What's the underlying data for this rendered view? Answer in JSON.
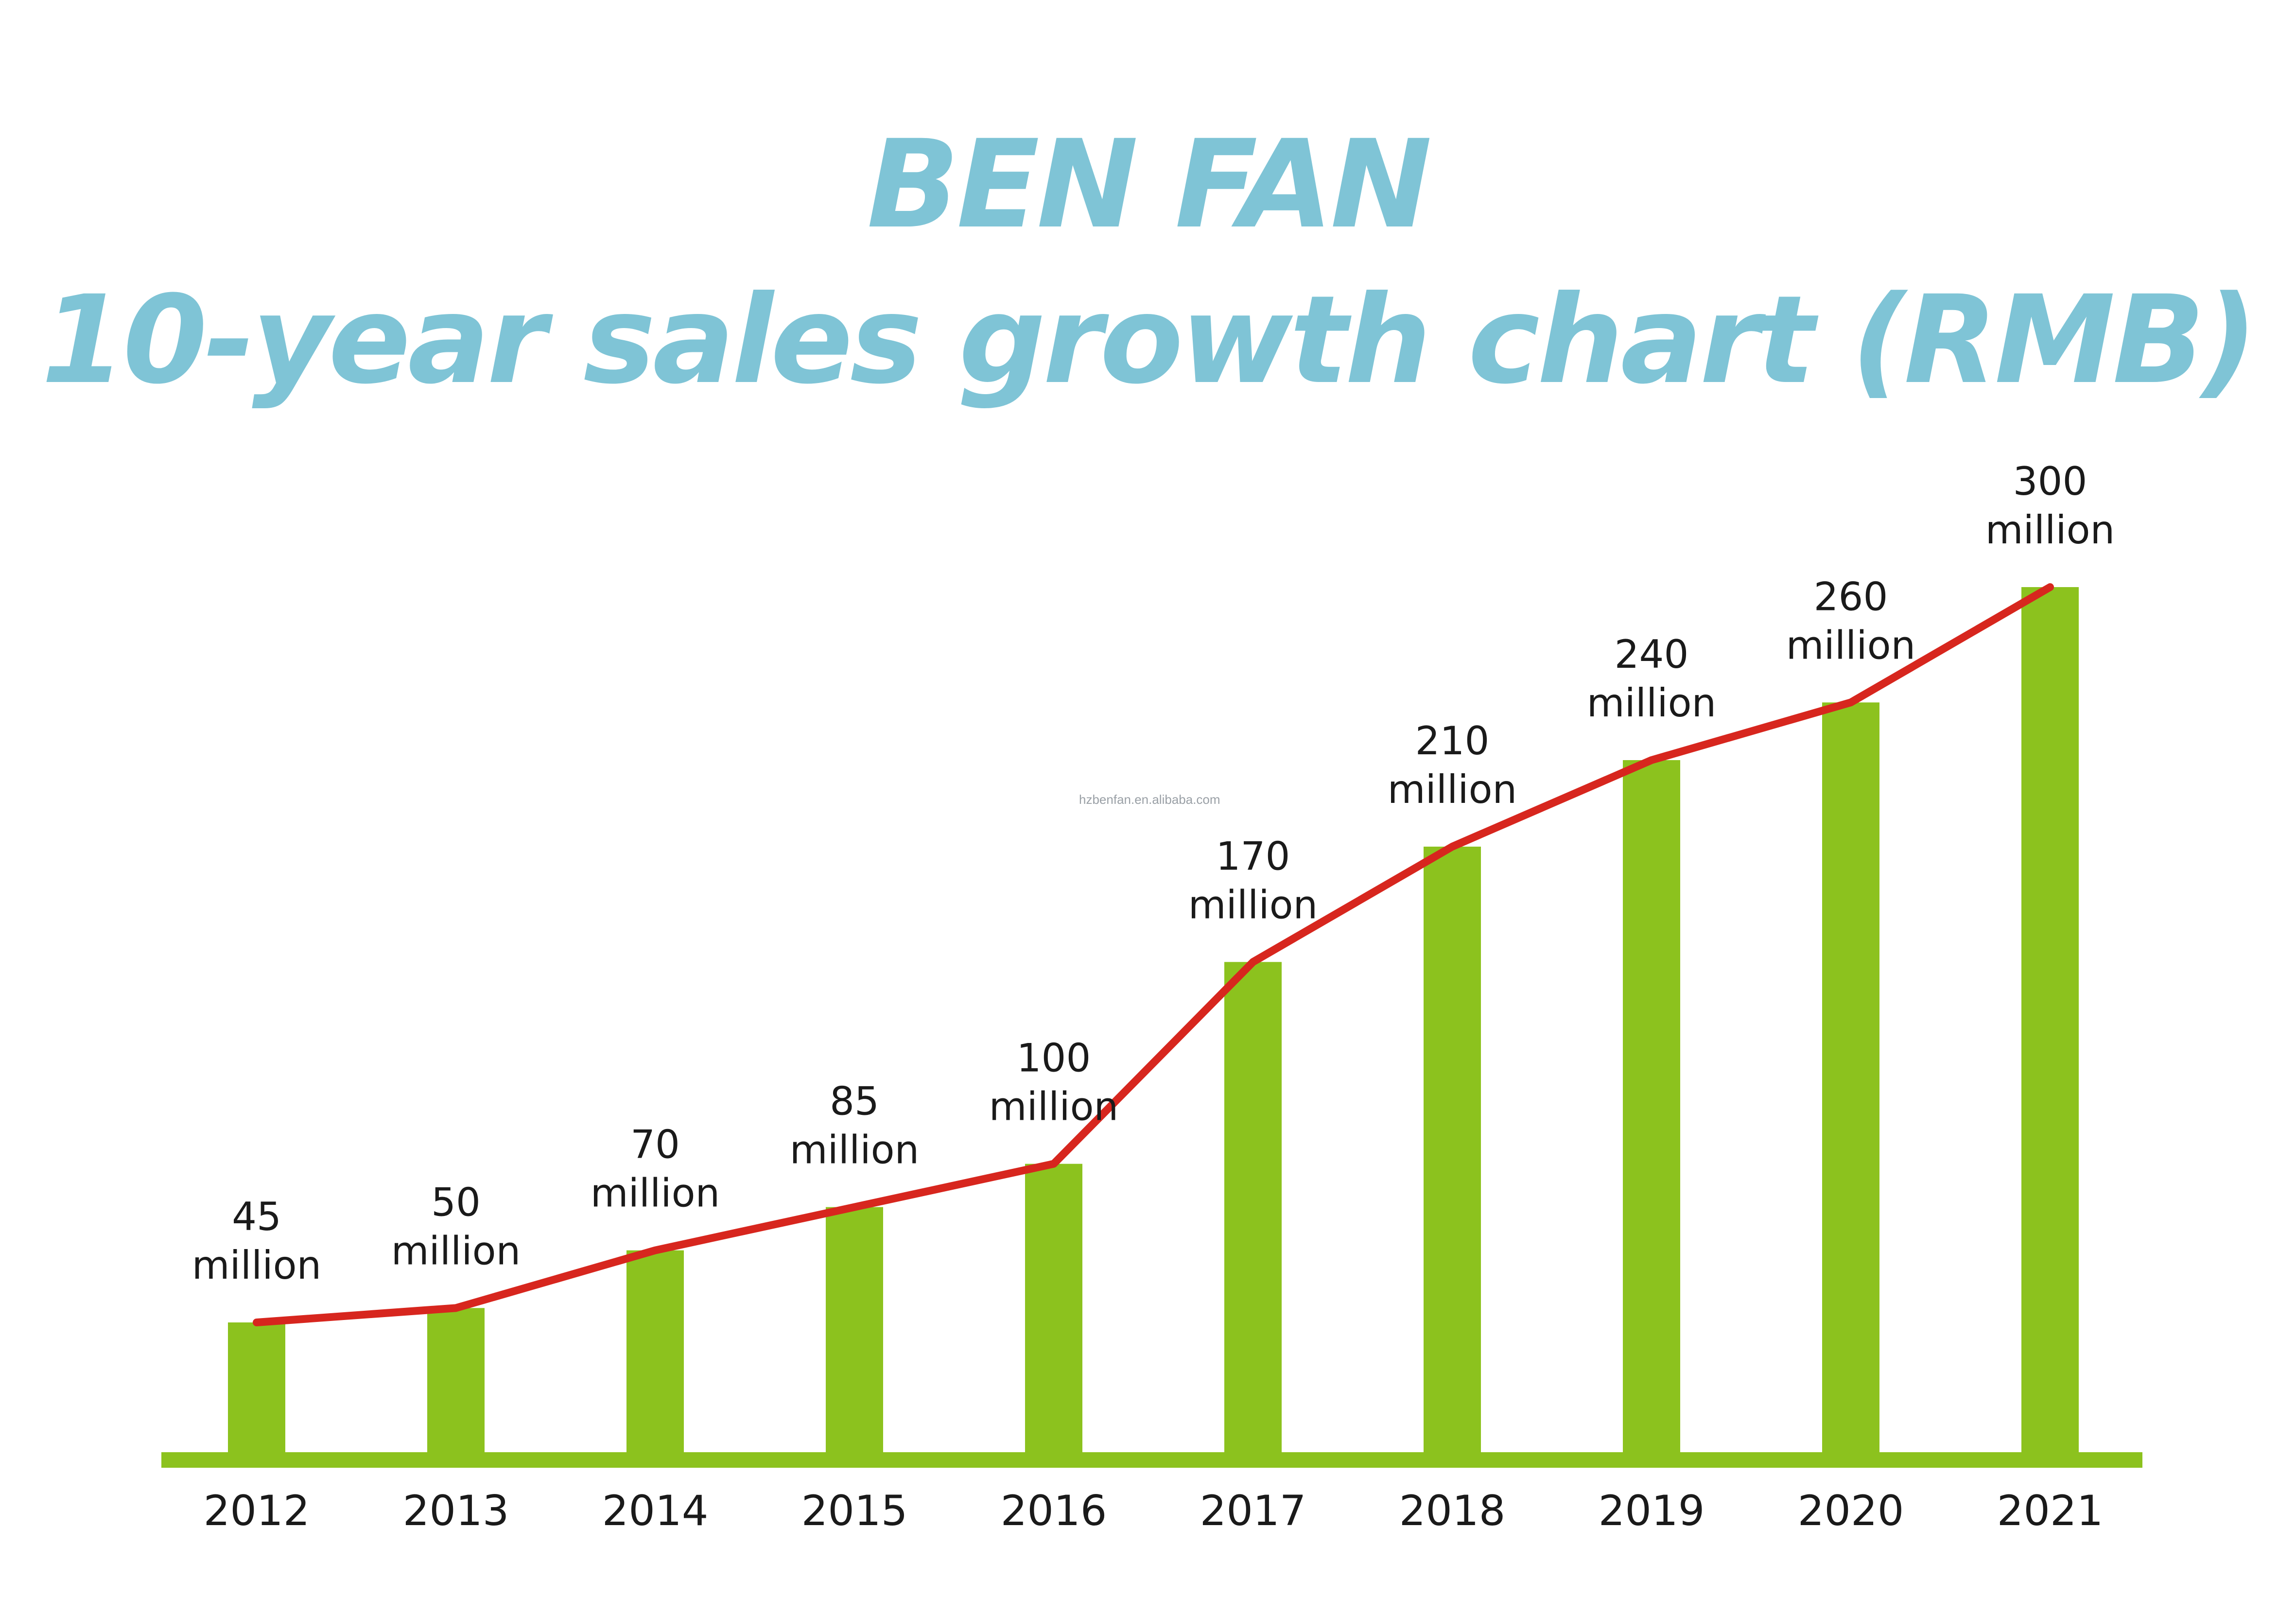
{
  "title_line1": "BEN FAN",
  "title_line2": "10-year sales growth chart (RMB)",
  "watermark": "hzbenfan.en.alibaba.com",
  "chart_data": {
    "type": "bar",
    "title": "BEN FAN 10-year sales growth chart (RMB)",
    "categories": [
      "2012",
      "2013",
      "2014",
      "2015",
      "2016",
      "2017",
      "2018",
      "2019",
      "2020",
      "2021"
    ],
    "values": [
      45,
      50,
      70,
      85,
      100,
      170,
      210,
      240,
      260,
      300
    ],
    "value_labels": [
      [
        "45",
        "million"
      ],
      [
        "50",
        "million"
      ],
      [
        "70",
        "million"
      ],
      [
        "85",
        "million"
      ],
      [
        "100",
        "million"
      ],
      [
        "170",
        "million"
      ],
      [
        "210",
        "million"
      ],
      [
        "240",
        "million"
      ],
      [
        "260",
        "million"
      ],
      [
        "300",
        "million"
      ]
    ],
    "line_overlay": true,
    "ylim": [
      0,
      300
    ],
    "grid": false,
    "colors": {
      "bar": "#8cc21e",
      "line": "#d7261e",
      "axis": "#8cc21e",
      "title": "#7fc4d6"
    }
  }
}
